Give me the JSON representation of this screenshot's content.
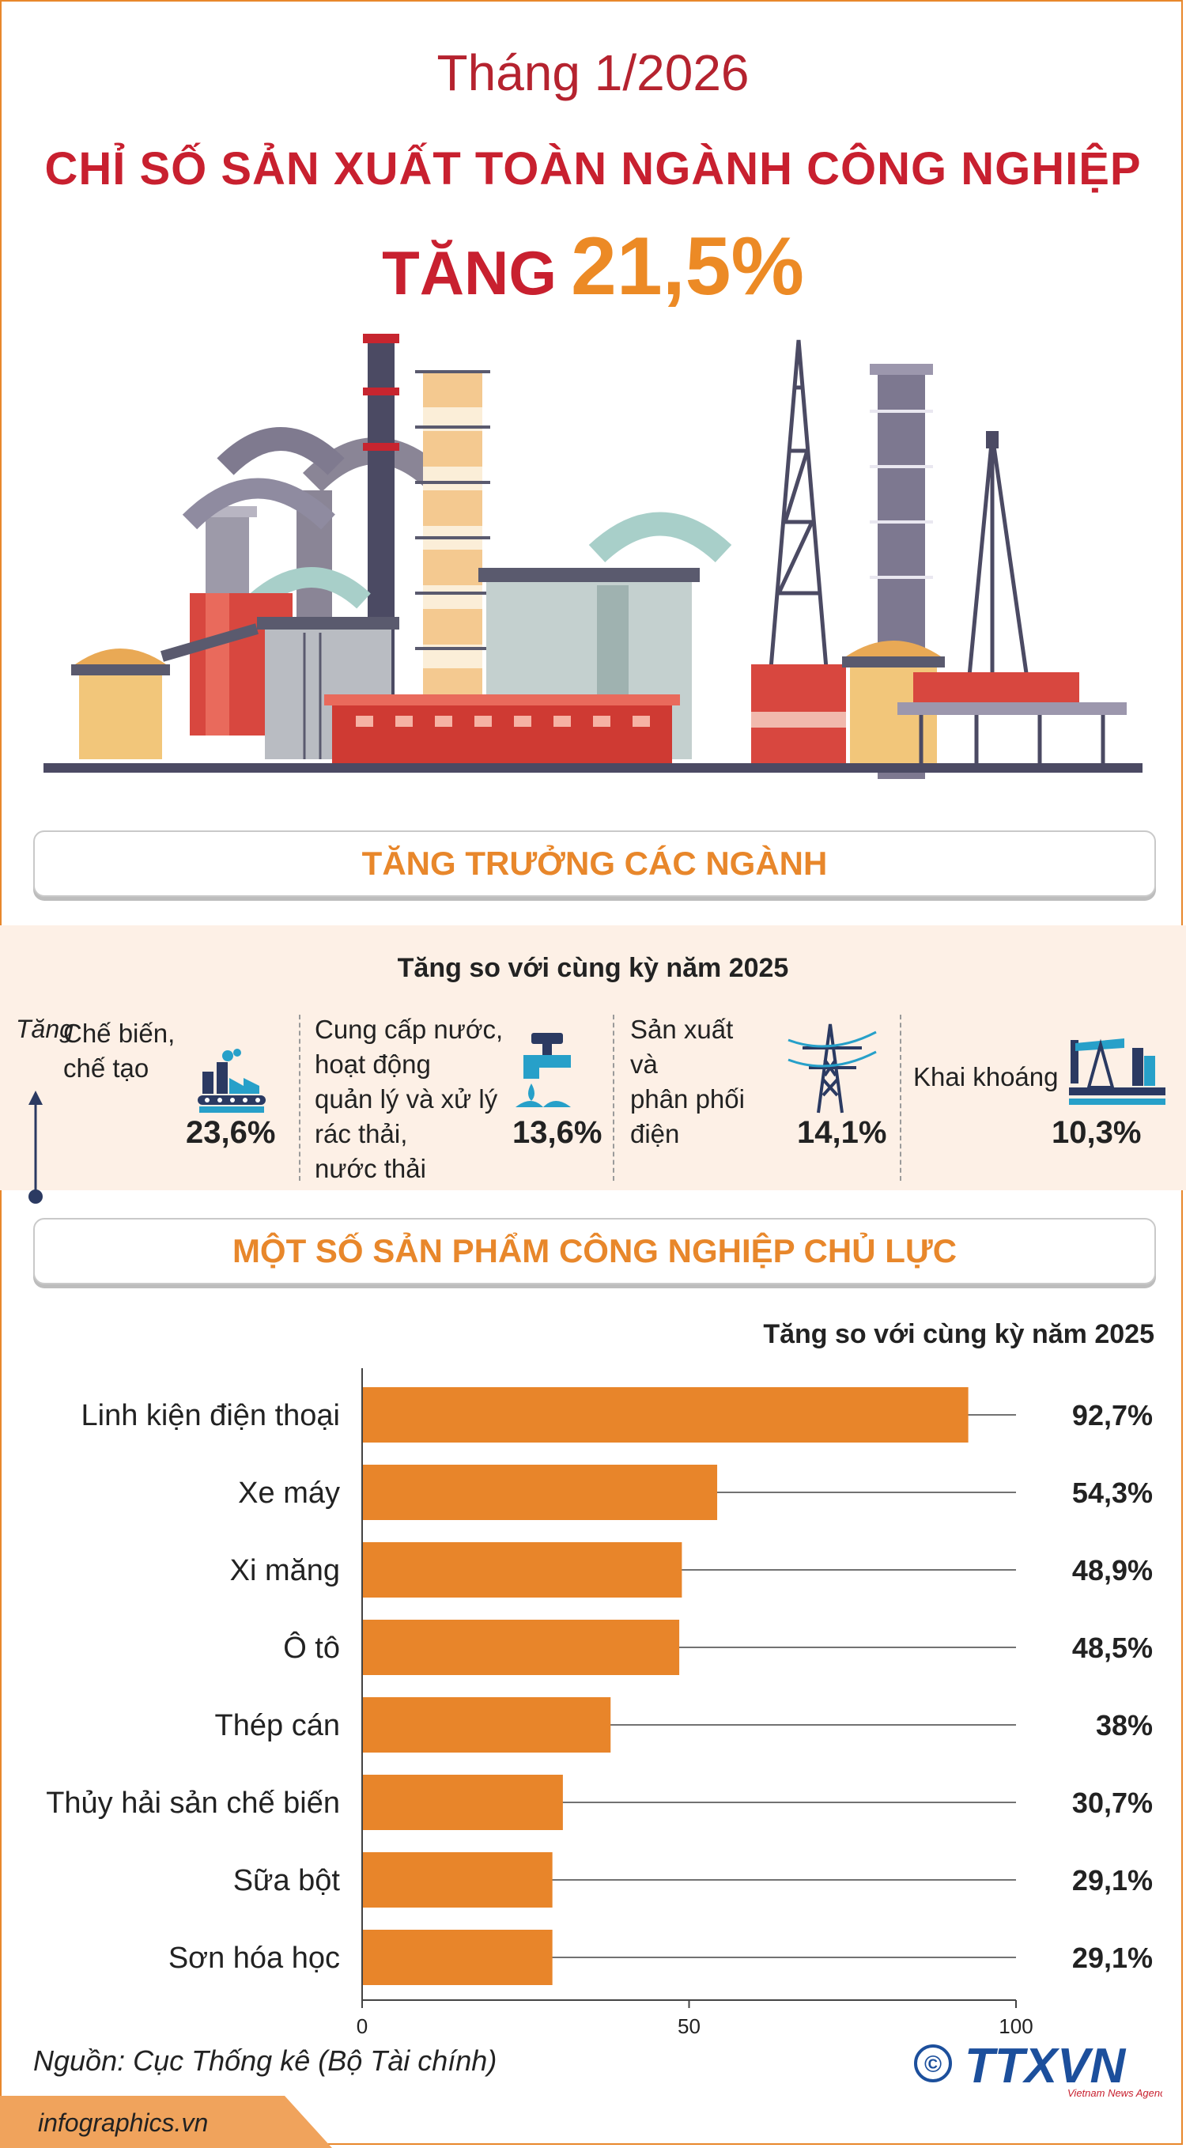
{
  "header": {
    "month": "Tháng 1/2026",
    "title": "CHỈ SỐ SẢN XUẤT TOÀN NGÀNH CÔNG NGHIỆP",
    "rise_word": "TĂNG",
    "rise_value": "21,5%"
  },
  "sectors_section": {
    "banner": "TĂNG TRƯỞNG CÁC NGÀNH",
    "subtitle": "Tăng so với cùng kỳ năm 2025",
    "axis_label": "Tăng",
    "items": [
      {
        "name": "Chế biến,\nchế tạo",
        "value": "23,6%",
        "icon": "factory-icon"
      },
      {
        "name": "Cung cấp nước,\nhoạt động\nquản lý và xử lý\nrác thải,\nnước thải",
        "value": "13,6%",
        "icon": "water-tap-icon"
      },
      {
        "name": "Sản xuất\nvà\nphân phối\nđiện",
        "value": "14,1%",
        "icon": "power-tower-icon"
      },
      {
        "name": "Khai khoáng",
        "value": "10,3%",
        "icon": "oil-pump-icon"
      }
    ]
  },
  "products_section": {
    "banner": "MỘT SỐ SẢN PHẨM CÔNG NGHIỆP CHỦ LỰC",
    "note": "Tăng so với cùng kỳ năm 2025"
  },
  "chart_data": {
    "type": "bar",
    "orientation": "horizontal",
    "categories": [
      "Linh kiện điện thoại",
      "Xe máy",
      "Xi măng",
      "Ô tô",
      "Thép cán",
      "Thủy hải sản chế biến",
      "Sữa bột",
      "Sơn hóa học"
    ],
    "values": [
      92.7,
      54.3,
      48.9,
      48.5,
      38,
      30.7,
      29.1,
      29.1
    ],
    "value_labels": [
      "92,7%",
      "54,3%",
      "48,9%",
      "48,5%",
      "38%",
      "30,7%",
      "29,1%",
      "29,1%"
    ],
    "xlim": [
      0,
      100
    ],
    "xticks": [
      "0",
      "50",
      "100"
    ],
    "grid": false,
    "bar_color": "#e8852a"
  },
  "footer": {
    "source": "Nguồn: Cục Thống kê (Bộ Tài chính)",
    "site": "infographics.vn",
    "logo_text": "TTXVN",
    "logo_sub": "Vietnam News Agency",
    "copyright": "©"
  },
  "colors": {
    "accent_red": "#c8202f",
    "accent_orange": "#e8872b",
    "band_bg": "#fdf0e6",
    "logo_blue": "#1c4f9c"
  }
}
